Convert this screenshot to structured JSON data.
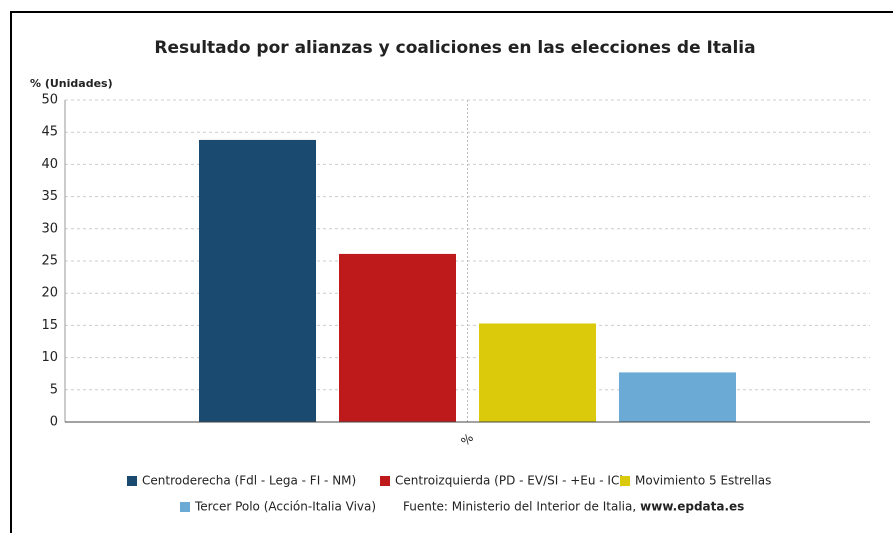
{
  "chart_data": {
    "type": "bar",
    "title": "Resultado por alianzas y coaliciones en las elecciones de Italia",
    "y_label": "% (Unidades)",
    "categories": [
      "%"
    ],
    "series": [
      {
        "name": "Centroderecha (Fdl - Lega - FI - NM)",
        "color": "#1b4a71",
        "values": [
          43.8
        ]
      },
      {
        "name": "Centroizquierda (PD - EV/SI - +Eu - IC)",
        "color": "#be1a1c",
        "values": [
          26.1
        ]
      },
      {
        "name": "Movimiento 5 Estrellas",
        "color": "#dbc90c",
        "values": [
          15.3
        ]
      },
      {
        "name": "Tercer Polo (Acción-Italia Viva)",
        "color": "#6aaad5",
        "values": [
          7.7
        ]
      }
    ],
    "ylim": [
      0,
      50
    ],
    "yticks": [
      0,
      5,
      10,
      15,
      20,
      25,
      30,
      35,
      40,
      45,
      50
    ],
    "grid": true,
    "source": "Fuente: Ministerio del Interior de Italia,",
    "source_link": "www.epdata.es"
  }
}
